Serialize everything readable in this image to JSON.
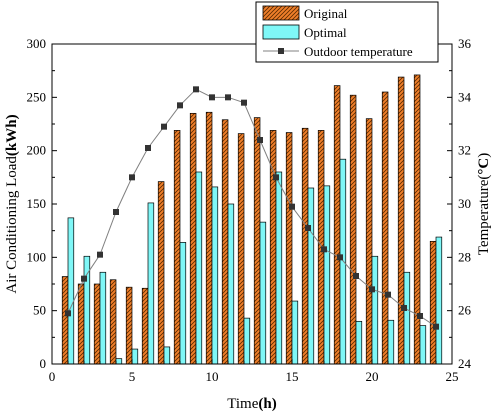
{
  "chart_data": {
    "type": "bar",
    "x": [
      1,
      2,
      3,
      4,
      5,
      6,
      7,
      8,
      9,
      10,
      11,
      12,
      13,
      14,
      15,
      16,
      17,
      18,
      19,
      20,
      21,
      22,
      23,
      24
    ],
    "series": [
      {
        "name": "Original",
        "kind": "bar",
        "axis": "left",
        "color": "#f07f2a",
        "values": [
          82,
          75,
          75,
          79,
          72,
          71,
          171,
          219,
          235,
          236,
          229,
          216,
          231,
          219,
          217,
          221,
          219,
          261,
          252,
          230,
          255,
          269,
          271,
          115
        ]
      },
      {
        "name": "Optimal",
        "kind": "bar",
        "axis": "left",
        "color": "#7ff7f7",
        "values": [
          137,
          101,
          86,
          5,
          14,
          151,
          16,
          114,
          180,
          166,
          150,
          43,
          133,
          180,
          59,
          165,
          167,
          192,
          40,
          101,
          41,
          86,
          36,
          119
        ]
      },
      {
        "name": "Outdoor temperature",
        "kind": "line",
        "axis": "right",
        "color": "#808080",
        "values": [
          25.9,
          27.2,
          28.1,
          29.7,
          31.0,
          32.1,
          32.9,
          33.7,
          34.3,
          34.0,
          34.0,
          33.8,
          32.4,
          31.0,
          29.9,
          29.1,
          28.3,
          28.0,
          27.3,
          26.8,
          26.6,
          26.1,
          25.8,
          25.4
        ]
      }
    ],
    "xlabel": "Time",
    "xlabel_unit": "h",
    "ylabel": "Air Conditioning Load",
    "ylabel_unit": "kWh",
    "y2label": "Temperature",
    "y2label_unit": "°C",
    "xlim": [
      0,
      25
    ],
    "ylim": [
      0,
      300
    ],
    "y2lim": [
      24,
      36
    ],
    "xticks": [
      0,
      5,
      10,
      15,
      20,
      25
    ],
    "yticks": [
      0,
      50,
      100,
      150,
      200,
      250,
      300
    ],
    "y2ticks": [
      24,
      26,
      28,
      30,
      32,
      34,
      36
    ],
    "grid": false,
    "legend_position": "top-right"
  }
}
